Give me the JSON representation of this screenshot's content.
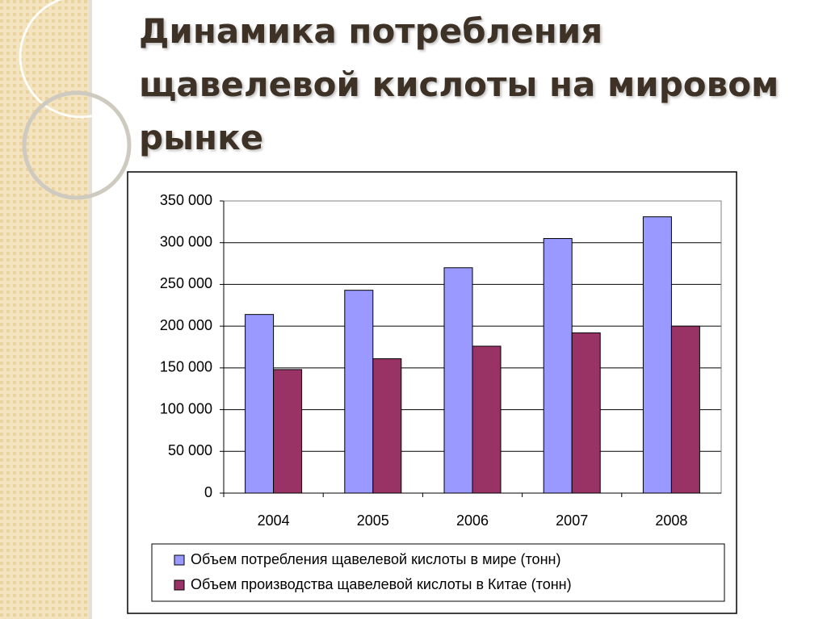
{
  "title": "Динамика потребления щавелевой кислоты на мировом рынке",
  "chart_data": {
    "type": "bar",
    "categories": [
      "2004",
      "2005",
      "2006",
      "2007",
      "2008"
    ],
    "series": [
      {
        "name": "Объем потребления щавелевой кислоты в мире (тонн)",
        "color": "#9999ff",
        "values": [
          214000,
          243000,
          270000,
          305000,
          331000
        ]
      },
      {
        "name": "Объем производства щавелевой кислоты в Китае (тонн)",
        "color": "#993366",
        "values": [
          148000,
          161000,
          176000,
          192000,
          200000
        ]
      }
    ],
    "ylim": [
      0,
      350000
    ],
    "yticks": [
      0,
      {
        "value": 50000,
        "label": "50 000"
      },
      {
        "value": 100000,
        "label": "100 000"
      },
      {
        "value": 150000,
        "label": "150 000"
      },
      {
        "value": 200000,
        "label": "200 000"
      },
      {
        "value": 250000,
        "label": "250 000"
      },
      {
        "value": 300000,
        "label": "300 000"
      },
      {
        "value": 350000,
        "label": "350 000"
      }
    ],
    "grid": true,
    "legend": "bottom"
  }
}
